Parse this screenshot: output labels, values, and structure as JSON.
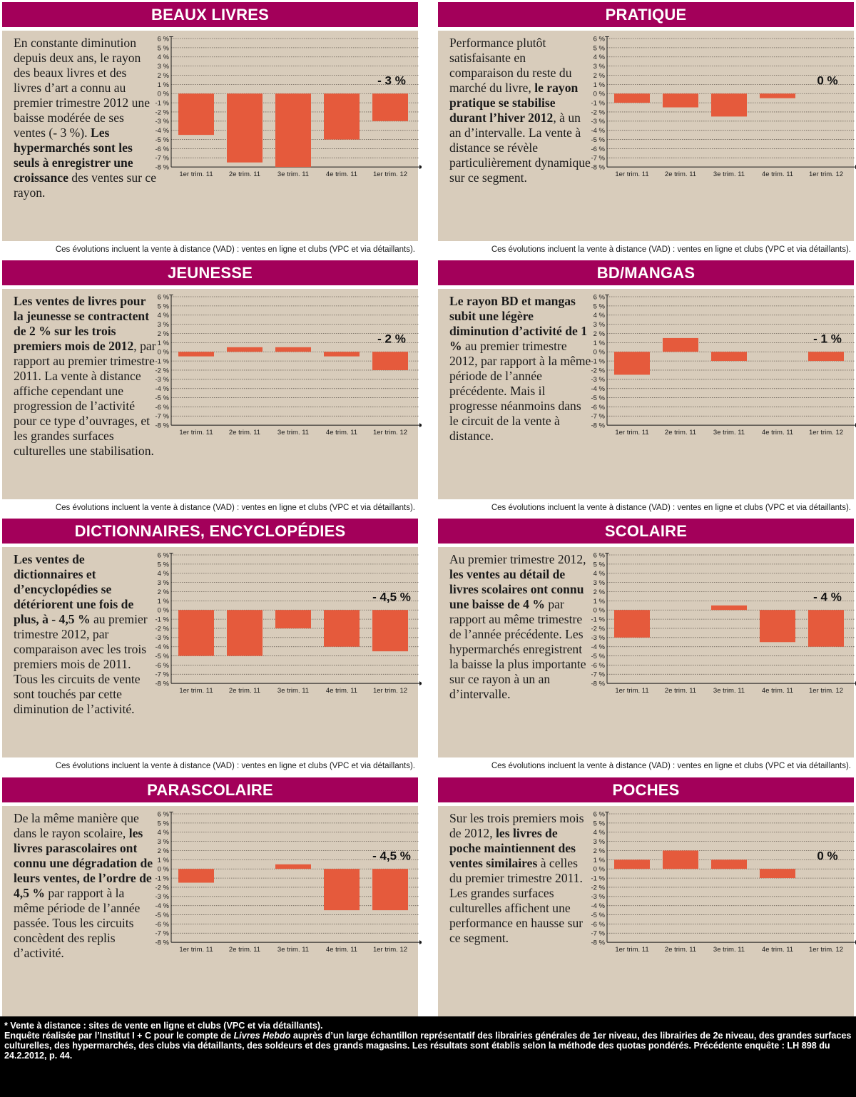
{
  "note": "Ces évolutions incluent la vente à distance (VAD) : ventes en ligne et clubs (VPC et via détaillants).",
  "footer": {
    "line1": "* Vente à distance : sites de vente en ligne et clubs (VPC et via détaillants).",
    "line2a": "Enquête réalisée par l’Institut I + C pour le compte de ",
    "line2b": "Livres Hebdo",
    "line2c": " auprès d’un large échantillon représentatif des librairies générales de 1er niveau, des librairies de 2e niveau, des grandes surfaces culturelles, des hypermarchés, des clubs via détaillants, des soldeurs et des grands magasins. Les résultats sont établis selon la méthode des quotas pondérés. Précédente enquête : LH 898 du 24.2.2012, p. 44."
  },
  "colors": {
    "header": "#a3005a",
    "panel": "#d8ccbb",
    "bar": "#e55a3c"
  },
  "y_ticks": [
    "6 %",
    "5 %",
    "4 %",
    "3 %",
    "2 %",
    "1 %",
    "0 %",
    "-1 %",
    "-2 %",
    "-3 %",
    "-4 %",
    "-5 %",
    "-6 %",
    "-7 %",
    "-8 %"
  ],
  "categories": [
    "1er trim. 11",
    "2e trim. 11",
    "3e trim. 11",
    "4e trim. 11",
    "1er trim. 12"
  ],
  "panels": [
    {
      "title": "BEAUX LIVRES",
      "label": "- 3 %",
      "text": [
        [
          "En constante diminution depuis deux ans, le rayon des beaux livres et des livres d’art a connu au premier trimestre 2012 une baisse modérée de ses ventes (- 3 %). ",
          false
        ],
        [
          "Les hypermarchés sont les seuls à enregistrer une croissance",
          true
        ],
        [
          " des ventes sur ce rayon.",
          false
        ]
      ]
    },
    {
      "title": "PRATIQUE",
      "label": "0 %",
      "text": [
        [
          "Performance plutôt satisfaisante en comparaison du reste du marché du livre, ",
          false
        ],
        [
          "le rayon pratique se stabilise durant l’hiver 2012",
          true
        ],
        [
          ", à un an d’intervalle. La vente à distance se révèle particulièrement dynamique sur ce segment.",
          false
        ]
      ]
    },
    {
      "title": "JEUNESSE",
      "label": "- 2 %",
      "text": [
        [
          "Les ventes de livres pour la jeunesse se contractent de 2 % sur les trois premiers mois de 2012",
          true
        ],
        [
          ", par rapport au premier trimestre 2011. La vente à distance affiche cependant une progression de l’activité pour ce type d’ouvrages, et les grandes surfaces culturelles une stabilisation.",
          false
        ]
      ]
    },
    {
      "title": "BD/MANGAS",
      "label": "- 1 %",
      "text": [
        [
          "Le rayon BD et mangas subit une légère diminution d’activité de 1 %",
          true
        ],
        [
          " au premier trimestre 2012, par rapport à la même période de l’année précédente. Mais il progresse néanmoins dans le circuit de la vente à distance.",
          false
        ]
      ]
    },
    {
      "title": "DICTIONNAIRES, ENCYCLOPÉDIES",
      "label": "- 4,5 %",
      "text": [
        [
          "Les ventes de dictionnaires et d’encyclopédies se détériorent une fois de plus, à - 4,5 %",
          true
        ],
        [
          " au premier trimestre 2012, par comparaison avec les trois premiers mois de 2011. Tous les circuits de vente sont touchés par cette diminution de l’activité.",
          false
        ]
      ]
    },
    {
      "title": "SCOLAIRE",
      "label": "- 4 %",
      "text": [
        [
          "Au premier trimestre 2012, ",
          false
        ],
        [
          "les ventes au détail de livres scolaires ont connu une baisse de 4 %",
          true
        ],
        [
          " par rapport au même trimestre de l’année précédente. Les hypermarchés enregistrent la baisse la plus importante sur ce rayon à un an d’intervalle.",
          false
        ]
      ]
    },
    {
      "title": "PARASCOLAIRE",
      "label": "- 4,5 %",
      "text": [
        [
          "De la même manière que dans le rayon scolaire, ",
          false
        ],
        [
          "les livres parascolaires ont connu une dégradation de leurs ventes, de l’ordre de 4,5 %",
          true
        ],
        [
          " par rapport à la même période de l’année passée. Tous les circuits concèdent des replis d’activité.",
          false
        ]
      ]
    },
    {
      "title": "POCHES",
      "label": "0 %",
      "text": [
        [
          "Sur les trois premiers mois de 2012, ",
          false
        ],
        [
          "les livres de poche maintiennent des ventes similaires",
          true
        ],
        [
          " à celles du premier trimestre 2011. Les grandes surfaces culturelles affichent une performance en hausse sur ce segment.",
          false
        ]
      ]
    }
  ],
  "chart_data": [
    {
      "type": "bar",
      "title": "BEAUX LIVRES",
      "categories": [
        "1er trim. 11",
        "2e trim. 11",
        "3e trim. 11",
        "4e trim. 11",
        "1er trim. 12"
      ],
      "values": [
        -4.5,
        -7.5,
        -8,
        -5,
        -3
      ],
      "ylim": [
        -8,
        6
      ]
    },
    {
      "type": "bar",
      "title": "PRATIQUE",
      "categories": [
        "1er trim. 11",
        "2e trim. 11",
        "3e trim. 11",
        "4e trim. 11",
        "1er trim. 12"
      ],
      "values": [
        -1,
        -1.5,
        -2.5,
        -0.5,
        0
      ],
      "ylim": [
        -8,
        6
      ]
    },
    {
      "type": "bar",
      "title": "JEUNESSE",
      "categories": [
        "1er trim. 11",
        "2e trim. 11",
        "3e trim. 11",
        "4e trim. 11",
        "1er trim. 12"
      ],
      "values": [
        -0.5,
        0.5,
        0.5,
        -0.5,
        -2
      ],
      "ylim": [
        -8,
        6
      ]
    },
    {
      "type": "bar",
      "title": "BD/MANGAS",
      "categories": [
        "1er trim. 11",
        "2e trim. 11",
        "3e trim. 11",
        "4e trim. 11",
        "1er trim. 12"
      ],
      "values": [
        -2.5,
        1.5,
        -1,
        0,
        -1
      ],
      "ylim": [
        -8,
        6
      ]
    },
    {
      "type": "bar",
      "title": "DICTIONNAIRES, ENCYCLOPÉDIES",
      "categories": [
        "1er trim. 11",
        "2e trim. 11",
        "3e trim. 11",
        "4e trim. 11",
        "1er trim. 12"
      ],
      "values": [
        -5,
        -5,
        -2,
        -4,
        -4.5
      ],
      "ylim": [
        -8,
        6
      ]
    },
    {
      "type": "bar",
      "title": "SCOLAIRE",
      "categories": [
        "1er trim. 11",
        "2e trim. 11",
        "3e trim. 11",
        "4e trim. 11",
        "1er trim. 12"
      ],
      "values": [
        -3,
        0,
        0.5,
        -3.5,
        -4
      ],
      "ylim": [
        -8,
        6
      ]
    },
    {
      "type": "bar",
      "title": "PARASCOLAIRE",
      "categories": [
        "1er trim. 11",
        "2e trim. 11",
        "3e trim. 11",
        "4e trim. 11",
        "1er trim. 12"
      ],
      "values": [
        -1.5,
        0,
        0.5,
        -4.5,
        -4.5
      ],
      "ylim": [
        -8,
        6
      ]
    },
    {
      "type": "bar",
      "title": "POCHES",
      "categories": [
        "1er trim. 11",
        "2e trim. 11",
        "3e trim. 11",
        "4e trim. 11",
        "1er trim. 12"
      ],
      "values": [
        1,
        2,
        1,
        -1,
        0
      ],
      "ylim": [
        -8,
        6
      ]
    }
  ]
}
